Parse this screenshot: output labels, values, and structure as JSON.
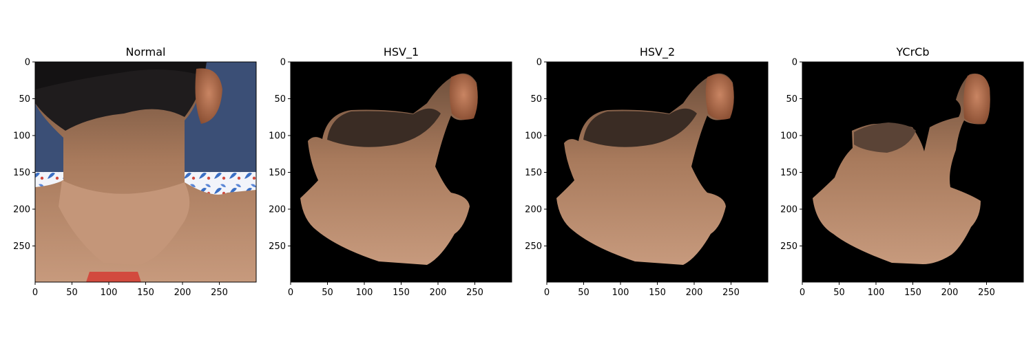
{
  "panels": [
    {
      "title": "Normal",
      "background": "photo"
    },
    {
      "title": "HSV_1",
      "background": "#000000"
    },
    {
      "title": "HSV_2",
      "background": "#000000"
    },
    {
      "title": "YCrCb",
      "background": "#000000"
    }
  ],
  "x_ticks": [
    "0",
    "50",
    "100",
    "150",
    "200",
    "250"
  ],
  "y_ticks": [
    "0",
    "50",
    "100",
    "150",
    "200",
    "250"
  ],
  "x_tick_values": [
    0,
    50,
    100,
    150,
    200,
    250
  ],
  "y_tick_values": [
    0,
    50,
    100,
    150,
    200,
    250
  ],
  "image_extent": [
    0,
    300
  ],
  "colors": {
    "skin_light": "#c79a7d",
    "skin_mid": "#a87a5c",
    "skin_dark": "#6e4f3c",
    "hair": "#1c1a1b",
    "shirt_blue": "#3b6fc4",
    "shirt_red": "#d24a3e",
    "wall": "#3b4f76"
  }
}
